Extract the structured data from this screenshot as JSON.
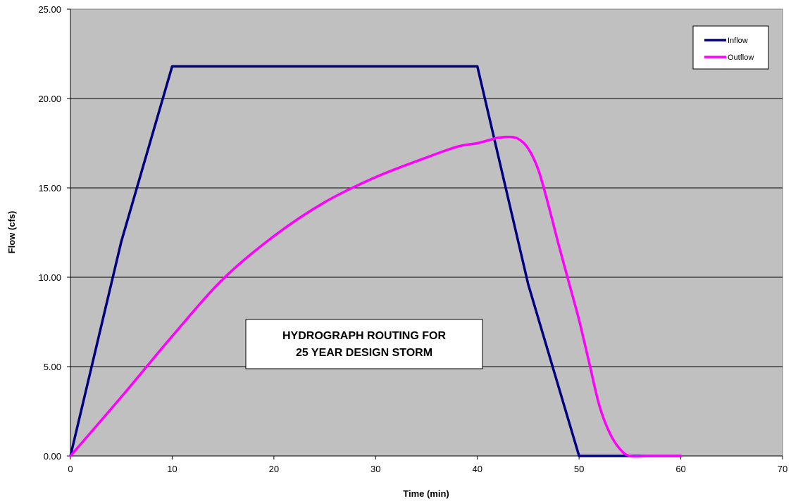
{
  "chart_data": {
    "type": "line",
    "title": "",
    "xlabel": "Time (min)",
    "ylabel": "Flow (cfs)",
    "xlim": [
      0,
      70
    ],
    "ylim": [
      0,
      25
    ],
    "x_ticks": [
      "0",
      "10",
      "20",
      "30",
      "40",
      "50",
      "60",
      "70"
    ],
    "y_ticks": [
      "0.00",
      "5.00",
      "10.00",
      "15.00",
      "20.00",
      "25.00"
    ],
    "grid": "horizontal",
    "plot_background": "#c0c0c0",
    "legend_position": "top-right",
    "annotation": [
      "HYDROGRAPH ROUTING FOR",
      "25 YEAR DESIGN STORM"
    ],
    "series": [
      {
        "name": "Inflow",
        "color": "#000080",
        "x": [
          0,
          5,
          10,
          40,
          45,
          50,
          60
        ],
        "y": [
          0,
          12.0,
          21.8,
          21.8,
          9.6,
          0,
          0
        ]
      },
      {
        "name": "Outflow",
        "color": "#ff00ff",
        "x": [
          0,
          5,
          10,
          15,
          20,
          25,
          30,
          35,
          38,
          40,
          41,
          42,
          43,
          44,
          45,
          46,
          47,
          48,
          49,
          50,
          51,
          52,
          53,
          54,
          55,
          57,
          60
        ],
        "y": [
          0,
          3.3,
          6.7,
          9.9,
          12.3,
          14.2,
          15.6,
          16.7,
          17.3,
          17.5,
          17.65,
          17.8,
          17.85,
          17.75,
          17.2,
          16.0,
          14.0,
          11.8,
          9.7,
          7.6,
          5.2,
          2.8,
          1.3,
          0.4,
          0,
          0,
          0
        ]
      }
    ]
  }
}
